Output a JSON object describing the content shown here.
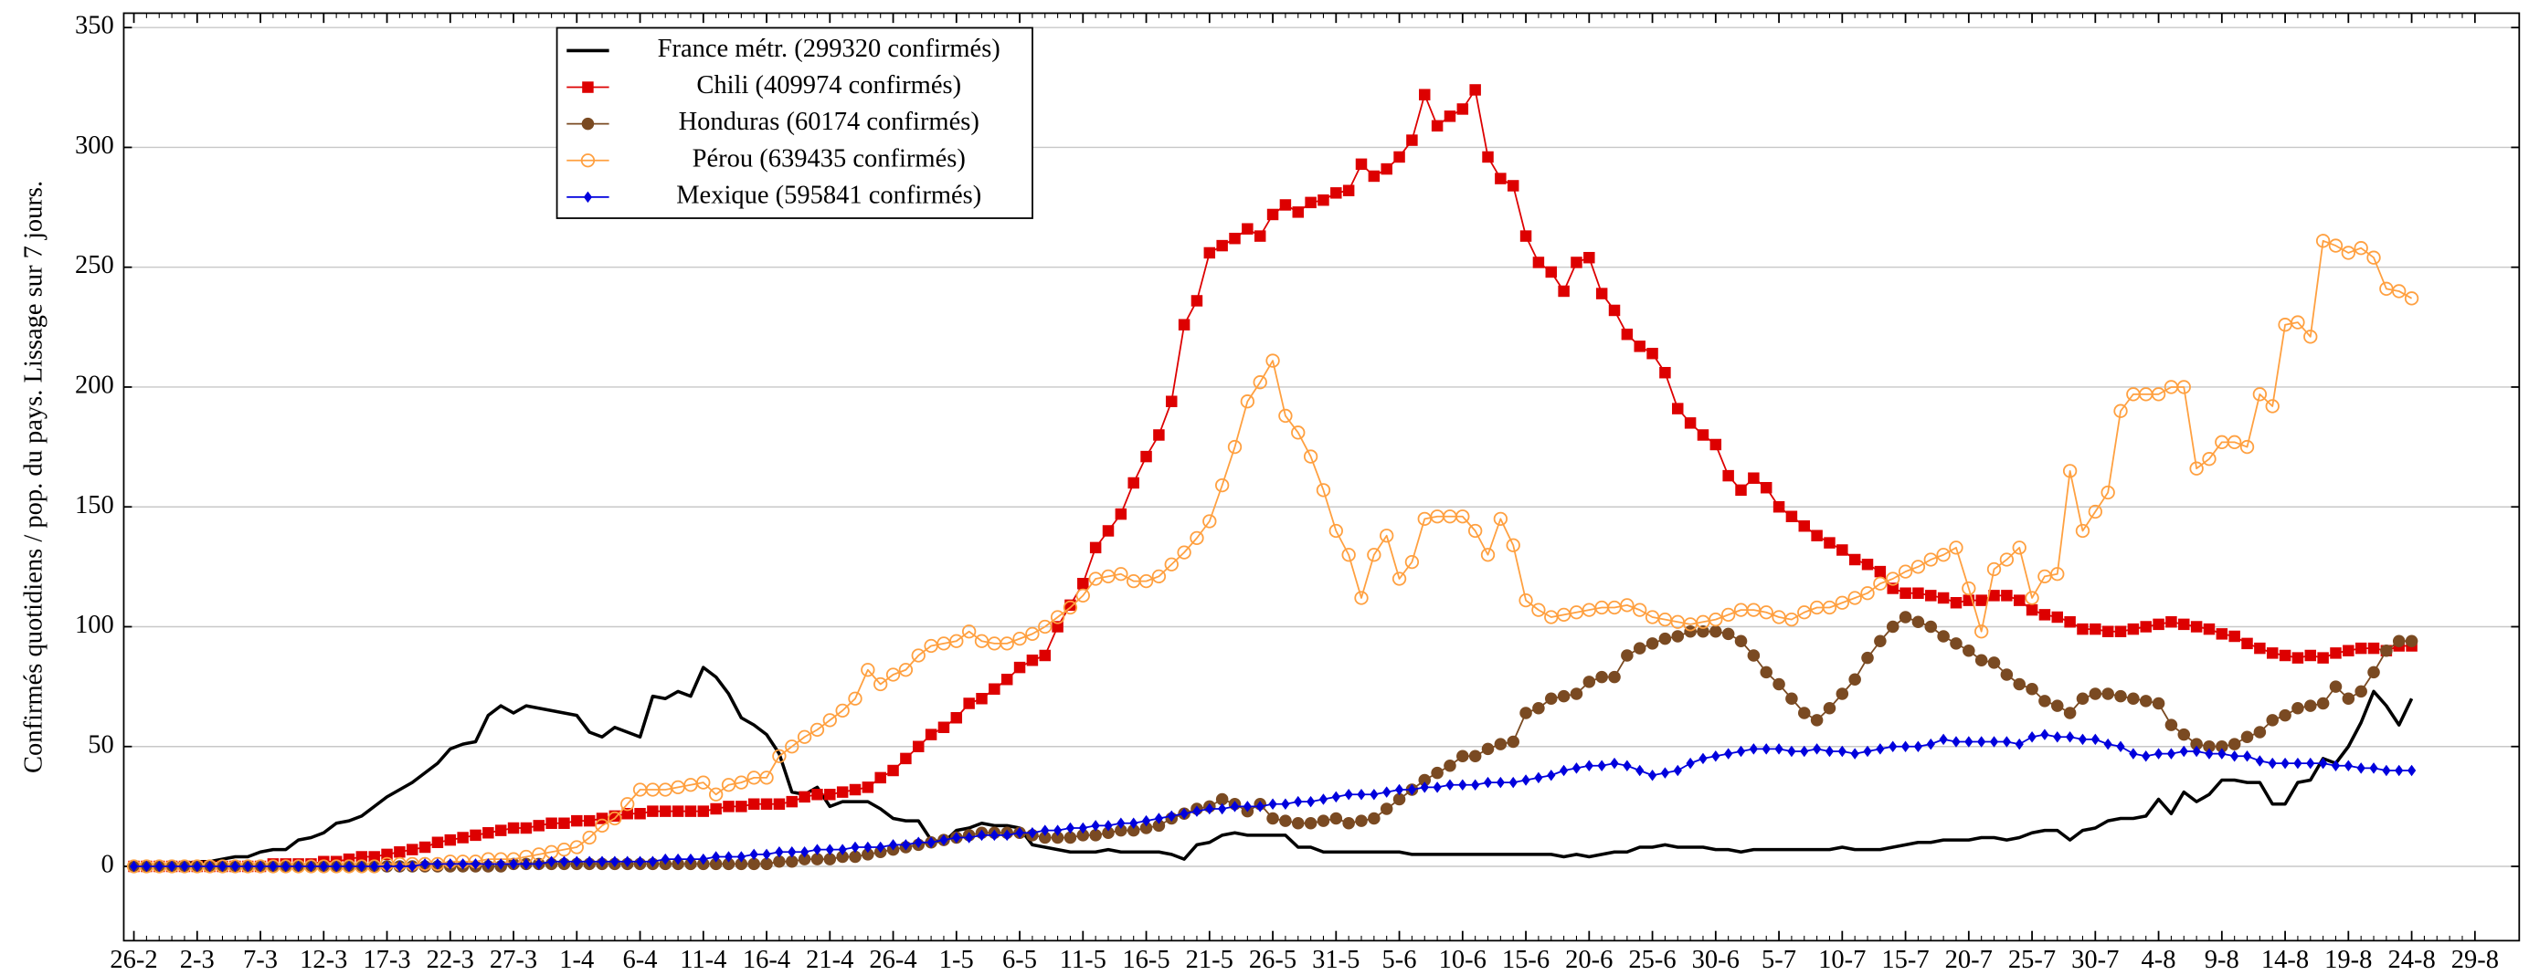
{
  "chart_data": {
    "type": "line",
    "ylabel": "Confirmés quotidiens / pop. du pays. Lissage sur 7 jours.",
    "categories": [
      "26-2",
      null,
      null,
      null,
      null,
      "2-3",
      null,
      null,
      null,
      null,
      "7-3",
      null,
      null,
      null,
      null,
      "12-3",
      null,
      null,
      null,
      null,
      "17-3",
      null,
      null,
      null,
      null,
      "22-3",
      null,
      null,
      null,
      null,
      "27-3",
      null,
      null,
      null,
      null,
      "1-4",
      null,
      null,
      null,
      null,
      "6-4",
      null,
      null,
      null,
      null,
      "11-4",
      null,
      null,
      null,
      null,
      "16-4",
      null,
      null,
      null,
      null,
      "21-4",
      null,
      null,
      null,
      null,
      "26-4",
      null,
      null,
      null,
      null,
      "1-5",
      null,
      null,
      null,
      null,
      "6-5",
      null,
      null,
      null,
      null,
      "11-5",
      null,
      null,
      null,
      null,
      "16-5",
      null,
      null,
      null,
      null,
      "21-5",
      null,
      null,
      null,
      null,
      "26-5",
      null,
      null,
      null,
      null,
      "31-5",
      null,
      null,
      null,
      null,
      "5-6",
      null,
      null,
      null,
      null,
      "10-6",
      null,
      null,
      null,
      null,
      "15-6",
      null,
      null,
      null,
      null,
      "20-6",
      null,
      null,
      null,
      null,
      "25-6",
      null,
      null,
      null,
      null,
      "30-6",
      null,
      null,
      null,
      null,
      "5-7",
      null,
      null,
      null,
      null,
      "10-7",
      null,
      null,
      null,
      null,
      "15-7",
      null,
      null,
      null,
      null,
      "20-7",
      null,
      null,
      null,
      null,
      "25-7",
      null,
      null,
      null,
      null,
      "30-7",
      null,
      null,
      null,
      null,
      "4-8",
      null,
      null,
      null,
      null,
      "9-8",
      null,
      null,
      null,
      null,
      "14-8",
      null,
      null,
      null,
      null,
      "19-8",
      null,
      null,
      null,
      null,
      "24-8",
      null,
      null,
      null,
      null,
      "29-8"
    ],
    "series": [
      {
        "name": "France métr. (299320 confirmés)",
        "color": "#000000",
        "marker": "none",
        "values": [
          0,
          0,
          0,
          1,
          1,
          2,
          2,
          3,
          4,
          4,
          6,
          7,
          7,
          11,
          12,
          14,
          18,
          19,
          21,
          25,
          29,
          32,
          35,
          39,
          43,
          49,
          51,
          52,
          63,
          67,
          64,
          67,
          66,
          65,
          64,
          63,
          56,
          54,
          58,
          56,
          54,
          71,
          70,
          73,
          71,
          83,
          79,
          72,
          62,
          59,
          55,
          47,
          31,
          30,
          33,
          25,
          27,
          27,
          27,
          24,
          20,
          19,
          19,
          11,
          10,
          15,
          16,
          18,
          17,
          17,
          16,
          9,
          8,
          7,
          6,
          6,
          6,
          7,
          6,
          6,
          6,
          6,
          5,
          3,
          9,
          10,
          13,
          14,
          13,
          13,
          13,
          13,
          8,
          8,
          6,
          6,
          6,
          6,
          6,
          6,
          6,
          5,
          5,
          5,
          5,
          5,
          5,
          5,
          5,
          5,
          5,
          5,
          5,
          4,
          5,
          4,
          5,
          6,
          6,
          8,
          8,
          9,
          8,
          8,
          8,
          7,
          7,
          6,
          7,
          7,
          7,
          7,
          7,
          7,
          7,
          8,
          7,
          7,
          7,
          8,
          9,
          10,
          10,
          11,
          11,
          11,
          12,
          12,
          11,
          12,
          14,
          15,
          15,
          11,
          15,
          16,
          19,
          20,
          20,
          21,
          28,
          22,
          31,
          27,
          30,
          36,
          36,
          35,
          35,
          26,
          26,
          35,
          36,
          45,
          43,
          50,
          60,
          73,
          67,
          59,
          70,
          null,
          null,
          null,
          null,
          null
        ]
      },
      {
        "name": "Chili (409974 confirmés)",
        "color": "#dd0000",
        "marker": "square",
        "values": [
          0,
          0,
          0,
          0,
          0,
          0,
          0,
          0,
          0,
          0,
          0,
          1,
          1,
          1,
          1,
          2,
          2,
          3,
          4,
          4,
          5,
          6,
          7,
          8,
          10,
          11,
          12,
          13,
          14,
          15,
          16,
          16,
          17,
          18,
          18,
          19,
          19,
          20,
          21,
          22,
          22,
          23,
          23,
          23,
          23,
          23,
          24,
          25,
          25,
          26,
          26,
          26,
          27,
          29,
          30,
          30,
          31,
          32,
          33,
          37,
          40,
          45,
          50,
          55,
          58,
          62,
          68,
          70,
          74,
          78,
          83,
          86,
          88,
          100,
          109,
          118,
          133,
          140,
          147,
          160,
          171,
          180,
          194,
          226,
          236,
          256,
          259,
          262,
          266,
          263,
          272,
          276,
          273,
          277,
          278,
          281,
          282,
          293,
          288,
          291,
          296,
          303,
          322,
          309,
          313,
          316,
          324,
          296,
          287,
          284,
          263,
          252,
          248,
          240,
          252,
          254,
          239,
          232,
          222,
          217,
          214,
          206,
          191,
          185,
          180,
          176,
          163,
          157,
          162,
          158,
          150,
          146,
          142,
          138,
          135,
          132,
          128,
          126,
          123,
          116,
          114,
          114,
          113,
          112,
          110,
          111,
          111,
          113,
          113,
          111,
          107,
          105,
          104,
          102,
          99,
          99,
          98,
          98,
          99,
          100,
          101,
          102,
          101,
          100,
          99,
          97,
          96,
          93,
          91,
          89,
          88,
          87,
          88,
          87,
          89,
          90,
          91,
          91,
          90,
          92,
          92,
          null,
          null,
          null,
          null,
          null
        ]
      },
      {
        "name": "Honduras (60174 confirmés)",
        "color": "#7a4a22",
        "marker": "circle",
        "values": [
          0,
          0,
          0,
          0,
          0,
          0,
          0,
          0,
          0,
          0,
          0,
          0,
          0,
          0,
          0,
          0,
          0,
          0,
          0,
          0,
          0,
          0,
          0,
          0,
          0,
          0,
          0,
          0,
          0,
          0,
          1,
          1,
          1,
          1,
          1,
          1,
          1,
          1,
          1,
          1,
          1,
          1,
          1,
          1,
          1,
          1,
          1,
          1,
          1,
          1,
          1,
          2,
          2,
          3,
          3,
          3,
          4,
          4,
          5,
          6,
          7,
          8,
          9,
          10,
          11,
          12,
          13,
          14,
          14,
          14,
          14,
          13,
          12,
          12,
          12,
          13,
          13,
          14,
          15,
          15,
          16,
          17,
          20,
          22,
          24,
          25,
          28,
          26,
          23,
          26,
          20,
          19,
          18,
          18,
          19,
          20,
          18,
          19,
          20,
          24,
          28,
          32,
          36,
          39,
          42,
          46,
          46,
          49,
          51,
          52,
          64,
          66,
          70,
          71,
          72,
          77,
          79,
          79,
          88,
          91,
          93,
          95,
          96,
          98,
          98,
          98,
          97,
          94,
          88,
          81,
          76,
          70,
          64,
          61,
          66,
          72,
          78,
          87,
          94,
          100,
          104,
          102,
          100,
          96,
          93,
          90,
          86,
          85,
          80,
          76,
          74,
          69,
          67,
          64,
          70,
          72,
          72,
          71,
          70,
          69,
          68,
          59,
          55,
          51,
          50,
          50,
          51,
          54,
          56,
          61,
          63,
          66,
          67,
          68,
          75,
          70,
          73,
          81,
          90,
          94,
          94,
          null,
          null,
          null,
          null,
          null
        ]
      },
      {
        "name": "Pérou (639435 confirmés)",
        "color": "#ffa040",
        "marker": "open-circle",
        "values": [
          0,
          0,
          0,
          0,
          0,
          0,
          0,
          0,
          0,
          0,
          0,
          0,
          0,
          0,
          0,
          0,
          0,
          0,
          0,
          0,
          1,
          1,
          1,
          1,
          1,
          2,
          2,
          2,
          3,
          3,
          3,
          4,
          5,
          6,
          7,
          8,
          12,
          17,
          20,
          26,
          32,
          32,
          32,
          33,
          34,
          35,
          30,
          34,
          35,
          37,
          37,
          46,
          50,
          54,
          57,
          61,
          65,
          70,
          82,
          76,
          80,
          82,
          88,
          92,
          93,
          94,
          98,
          94,
          93,
          93,
          95,
          97,
          100,
          104,
          108,
          113,
          120,
          121,
          122,
          119,
          119,
          121,
          126,
          131,
          137,
          144,
          159,
          175,
          194,
          202,
          211,
          188,
          181,
          171,
          157,
          140,
          130,
          112,
          130,
          138,
          120,
          127,
          145,
          146,
          146,
          146,
          140,
          130,
          145,
          134,
          111,
          107,
          104,
          105,
          106,
          107,
          108,
          108,
          109,
          107,
          104,
          103,
          102,
          101,
          102,
          103,
          105,
          107,
          107,
          106,
          104,
          103,
          106,
          108,
          108,
          110,
          112,
          114,
          118,
          120,
          123,
          125,
          128,
          130,
          133,
          116,
          98,
          124,
          128,
          133,
          112,
          121,
          122,
          165,
          140,
          148,
          156,
          190,
          197,
          197,
          197,
          200,
          200,
          166,
          170,
          177,
          177,
          175,
          197,
          192,
          226,
          227,
          221,
          261,
          259,
          256,
          258,
          254,
          241,
          240,
          237,
          null,
          null,
          null,
          null,
          null
        ]
      },
      {
        "name": "Mexique (595841 confirmés)",
        "color": "#0000dd",
        "marker": "diamond",
        "values": [
          0,
          0,
          0,
          0,
          0,
          0,
          0,
          0,
          0,
          0,
          0,
          0,
          0,
          0,
          0,
          0,
          0,
          0,
          0,
          0,
          0,
          0,
          0,
          1,
          1,
          1,
          1,
          1,
          1,
          1,
          1,
          1,
          1,
          2,
          2,
          2,
          2,
          2,
          2,
          2,
          2,
          2,
          3,
          3,
          3,
          3,
          4,
          4,
          4,
          5,
          5,
          6,
          6,
          6,
          7,
          7,
          7,
          8,
          8,
          8,
          9,
          9,
          10,
          10,
          11,
          12,
          12,
          13,
          13,
          13,
          14,
          14,
          15,
          15,
          16,
          16,
          17,
          17,
          18,
          18,
          19,
          20,
          21,
          22,
          23,
          24,
          24,
          25,
          25,
          25,
          26,
          26,
          27,
          27,
          28,
          29,
          30,
          30,
          30,
          31,
          32,
          32,
          33,
          33,
          34,
          34,
          34,
          35,
          35,
          35,
          36,
          37,
          38,
          40,
          41,
          42,
          42,
          43,
          42,
          40,
          38,
          39,
          40,
          43,
          45,
          46,
          47,
          48,
          49,
          49,
          49,
          48,
          48,
          49,
          48,
          48,
          47,
          48,
          49,
          50,
          50,
          50,
          51,
          53,
          52,
          52,
          52,
          52,
          52,
          51,
          54,
          55,
          54,
          54,
          53,
          53,
          51,
          50,
          47,
          46,
          47,
          47,
          48,
          48,
          47,
          47,
          46,
          46,
          44,
          43,
          43,
          43,
          43,
          43,
          42,
          42,
          41,
          41,
          40,
          40,
          40,
          null,
          null,
          null,
          null,
          null
        ]
      }
    ],
    "ylim": [
      -31,
      356
    ],
    "yticks": [
      0,
      50,
      100,
      150,
      200,
      250,
      300,
      350
    ],
    "grid": true,
    "legend": "upper left"
  }
}
